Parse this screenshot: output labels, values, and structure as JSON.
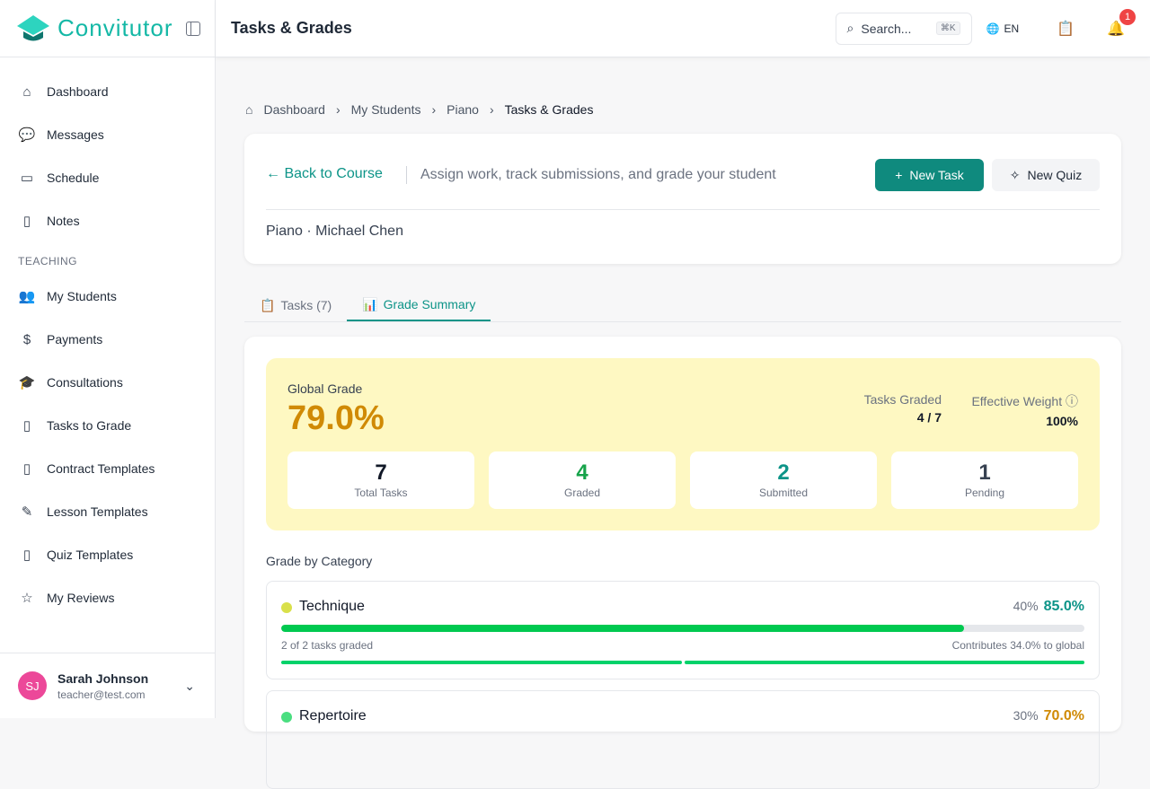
{
  "brand": {
    "name": "Convitutor"
  },
  "sidebar": {
    "items": [
      {
        "label": "Dashboard",
        "icon": "home-icon",
        "glyph": "⌂"
      },
      {
        "label": "Messages",
        "icon": "message-icon",
        "glyph": "💬"
      },
      {
        "label": "Schedule",
        "icon": "calendar-icon",
        "glyph": "▭"
      },
      {
        "label": "Notes",
        "icon": "notes-icon",
        "glyph": "▯"
      }
    ],
    "section": "TEACHING",
    "teaching": [
      {
        "label": "My Students",
        "icon": "users-icon",
        "glyph": "👥"
      },
      {
        "label": "Payments",
        "icon": "dollar-icon",
        "glyph": "$"
      },
      {
        "label": "Consultations",
        "icon": "graduation-icon",
        "glyph": "🎓"
      },
      {
        "label": "Tasks to Grade",
        "icon": "clipboard-check-icon",
        "glyph": "▯"
      },
      {
        "label": "Contract Templates",
        "icon": "file-text-icon",
        "glyph": "▯"
      },
      {
        "label": "Lesson Templates",
        "icon": "pencil-icon",
        "glyph": "✎"
      },
      {
        "label": "Quiz Templates",
        "icon": "file-icon",
        "glyph": "▯"
      },
      {
        "label": "My Reviews",
        "icon": "star-icon",
        "glyph": "☆"
      }
    ]
  },
  "user": {
    "initials": "SJ",
    "name": "Sarah Johnson",
    "email": "teacher@test.com"
  },
  "topbar": {
    "title": "Tasks & Grades",
    "search": "Search...",
    "shortcut": "⌘K",
    "lang": "EN",
    "notifications": "1"
  },
  "breadcrumb": [
    "Dashboard",
    "My Students",
    "Piano",
    "Tasks & Grades"
  ],
  "header": {
    "back": "Back to Course",
    "description": "Assign work, track submissions, and grade your student",
    "new_task": "New Task",
    "new_quiz": "New Quiz",
    "course": "Piano · Michael Chen"
  },
  "tabs": [
    {
      "label": "Tasks (7)"
    },
    {
      "label": "Grade Summary",
      "active": true
    }
  ],
  "summary": {
    "global_label": "Global Grade",
    "global_value": "79.0%",
    "tasks_graded_label": "Tasks Graded",
    "tasks_graded": "4 / 7",
    "weight_label": "Effective Weight",
    "weight": "100%",
    "stats": [
      {
        "value": "7",
        "label": "Total Tasks",
        "color": "#111827"
      },
      {
        "value": "4",
        "label": "Graded",
        "color": "#16a34a"
      },
      {
        "value": "2",
        "label": "Submitted",
        "color": "#0d9488"
      },
      {
        "value": "1",
        "label": "Pending",
        "color": "#374151"
      }
    ]
  },
  "categories_title": "Grade by Category",
  "categories": [
    {
      "name": "Technique",
      "weight": "40%",
      "grade": "85.0%",
      "progress": 85,
      "dot": "#d9e04a",
      "grade_color": "#0d9488",
      "graded": "2 of 2 tasks graded",
      "contrib": "Contributes 34.0% to global"
    },
    {
      "name": "Repertoire",
      "weight": "30%",
      "grade": "70.0%",
      "dot": "#4ade80",
      "grade_color": "#d08a05"
    }
  ]
}
